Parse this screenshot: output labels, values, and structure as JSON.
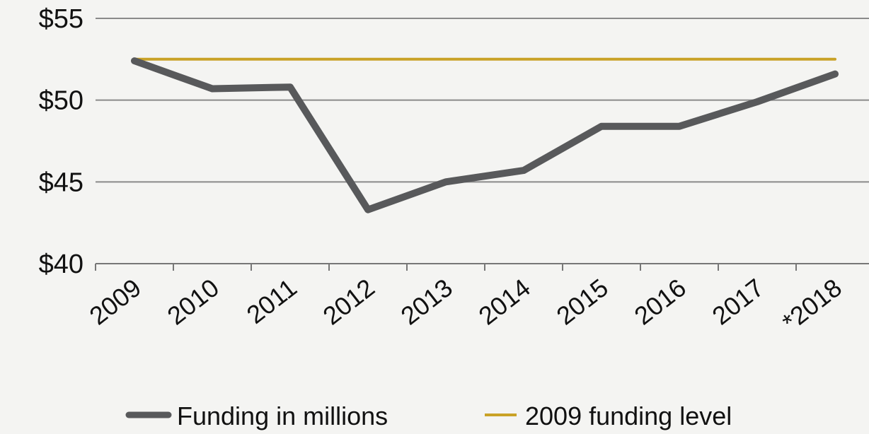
{
  "chart_data": {
    "type": "line",
    "categories": [
      "2009",
      "2010",
      "2011",
      "2012",
      "2013",
      "2014",
      "2015",
      "2016",
      "2017",
      "*2018"
    ],
    "series": [
      {
        "name": "Funding in millions",
        "values": [
          52.4,
          50.7,
          50.8,
          43.3,
          45.0,
          45.7,
          48.4,
          48.4,
          49.9,
          51.6
        ],
        "color": "#58595b"
      },
      {
        "name": "2009 funding level",
        "values": [
          52.5,
          52.5,
          52.5,
          52.5,
          52.5,
          52.5,
          52.5,
          52.5,
          52.5,
          52.5
        ],
        "color": "#c9a227"
      }
    ],
    "yticks": [
      "$40",
      "$45",
      "$50",
      "$55"
    ],
    "ylim": [
      40,
      55
    ],
    "grid": true,
    "legend": "bottom"
  }
}
